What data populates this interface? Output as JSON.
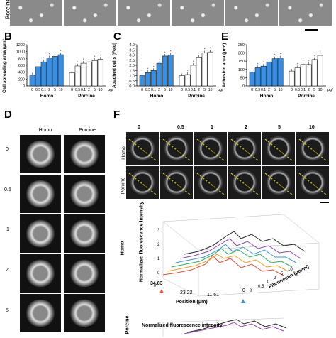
{
  "panels": {
    "A_row_label": "Porcine",
    "B": {
      "label": "B",
      "ylabel": "Cell spreading area (μm²)",
      "yticks": [
        "0",
        "200",
        "400",
        "600",
        "800",
        "1000",
        "1200"
      ],
      "xticks": [
        "0",
        "0.5",
        "0.1",
        "2",
        "5",
        "10"
      ],
      "groups": [
        "Homo",
        "Porcine"
      ],
      "unit": "μg/ml"
    },
    "C": {
      "label": "C",
      "ylabel": "Attached cells (Fold)",
      "yticks": [
        "0.0",
        "0.5",
        "1.0",
        "1.5",
        "2.0",
        "2.5",
        "3.0",
        "3.5",
        "4.0"
      ],
      "xticks": [
        "0",
        "0.5",
        "0.1",
        "2",
        "5",
        "10"
      ],
      "groups": [
        "Homo",
        "Porcine"
      ],
      "unit": "μg/ml"
    },
    "E": {
      "label": "E",
      "ylabel": "Adhesion area (μm²)",
      "yticks": [
        "0",
        "50",
        "100",
        "150",
        "200",
        "250"
      ],
      "xticks": [
        "0",
        "0.5",
        "0.1",
        "2",
        "5",
        "10"
      ],
      "groups": [
        "Homo",
        "Porcine"
      ],
      "unit": "μg/ml"
    },
    "D": {
      "label": "D",
      "col_headers": [
        "Homo",
        "Porcine"
      ],
      "row_labels": [
        "0",
        "0.5",
        "1",
        "2",
        "5"
      ]
    },
    "F": {
      "label": "F",
      "col_headers": [
        "0",
        "0.5",
        "1",
        "2",
        "5",
        "10"
      ],
      "row_labels": [
        "Homo",
        "Porcine"
      ],
      "plot1": {
        "side_label": "Homo",
        "zlabel": "Normalized fluorescence intensity",
        "zticks": [
          "0",
          "1",
          "2",
          "3"
        ],
        "xlabel": "Position (μm)",
        "xticks": [
          "34.83",
          "23.22",
          "11.61",
          "0"
        ],
        "ylabel": "Fibronectin (μg/ml)",
        "yticks": [
          "0",
          "0.5",
          "1",
          "2",
          "5",
          "10"
        ]
      },
      "plot2": {
        "side_label": "Porcine",
        "zlabel": "Normalized fluorescence intensity"
      }
    }
  },
  "chart_data": [
    {
      "type": "bar",
      "title": "",
      "ylabel": "Cell spreading area (μm²)",
      "ylim": [
        0,
        1200
      ],
      "categories": [
        "0",
        "0.5",
        "0.1",
        "2",
        "5",
        "10"
      ],
      "series": [
        {
          "name": "Homo",
          "values": [
            320,
            560,
            700,
            820,
            860,
            910
          ]
        },
        {
          "name": "Porcine",
          "values": [
            380,
            580,
            660,
            700,
            740,
            780
          ]
        }
      ],
      "legend": "none",
      "grid": false
    },
    {
      "type": "bar",
      "title": "",
      "ylabel": "Attached cells (Fold)",
      "ylim": [
        0,
        4
      ],
      "categories": [
        "0",
        "0.5",
        "0.1",
        "2",
        "5",
        "10"
      ],
      "series": [
        {
          "name": "Homo",
          "values": [
            1.0,
            1.3,
            1.5,
            2.2,
            2.9,
            3.0
          ]
        },
        {
          "name": "Porcine",
          "values": [
            1.0,
            1.1,
            2.0,
            2.8,
            3.2,
            3.3
          ]
        }
      ],
      "legend": "none",
      "grid": false
    },
    {
      "type": "bar",
      "title": "",
      "ylabel": "Adhesion area (μm²)",
      "ylim": [
        0,
        250
      ],
      "categories": [
        "0",
        "0.5",
        "0.1",
        "2",
        "5",
        "10"
      ],
      "series": [
        {
          "name": "Homo",
          "values": [
            85,
            110,
            120,
            145,
            165,
            170
          ]
        },
        {
          "name": "Porcine",
          "values": [
            90,
            110,
            130,
            130,
            160,
            185
          ]
        }
      ],
      "legend": "none",
      "grid": false
    }
  ],
  "colors": {
    "homo_bar": "#3b8fe0",
    "porcine_bar": "#ffffff",
    "line_colors": [
      "#e74c3c",
      "#f39c12",
      "#27ae60",
      "#3498db",
      "#8e44ad",
      "#222222"
    ]
  }
}
